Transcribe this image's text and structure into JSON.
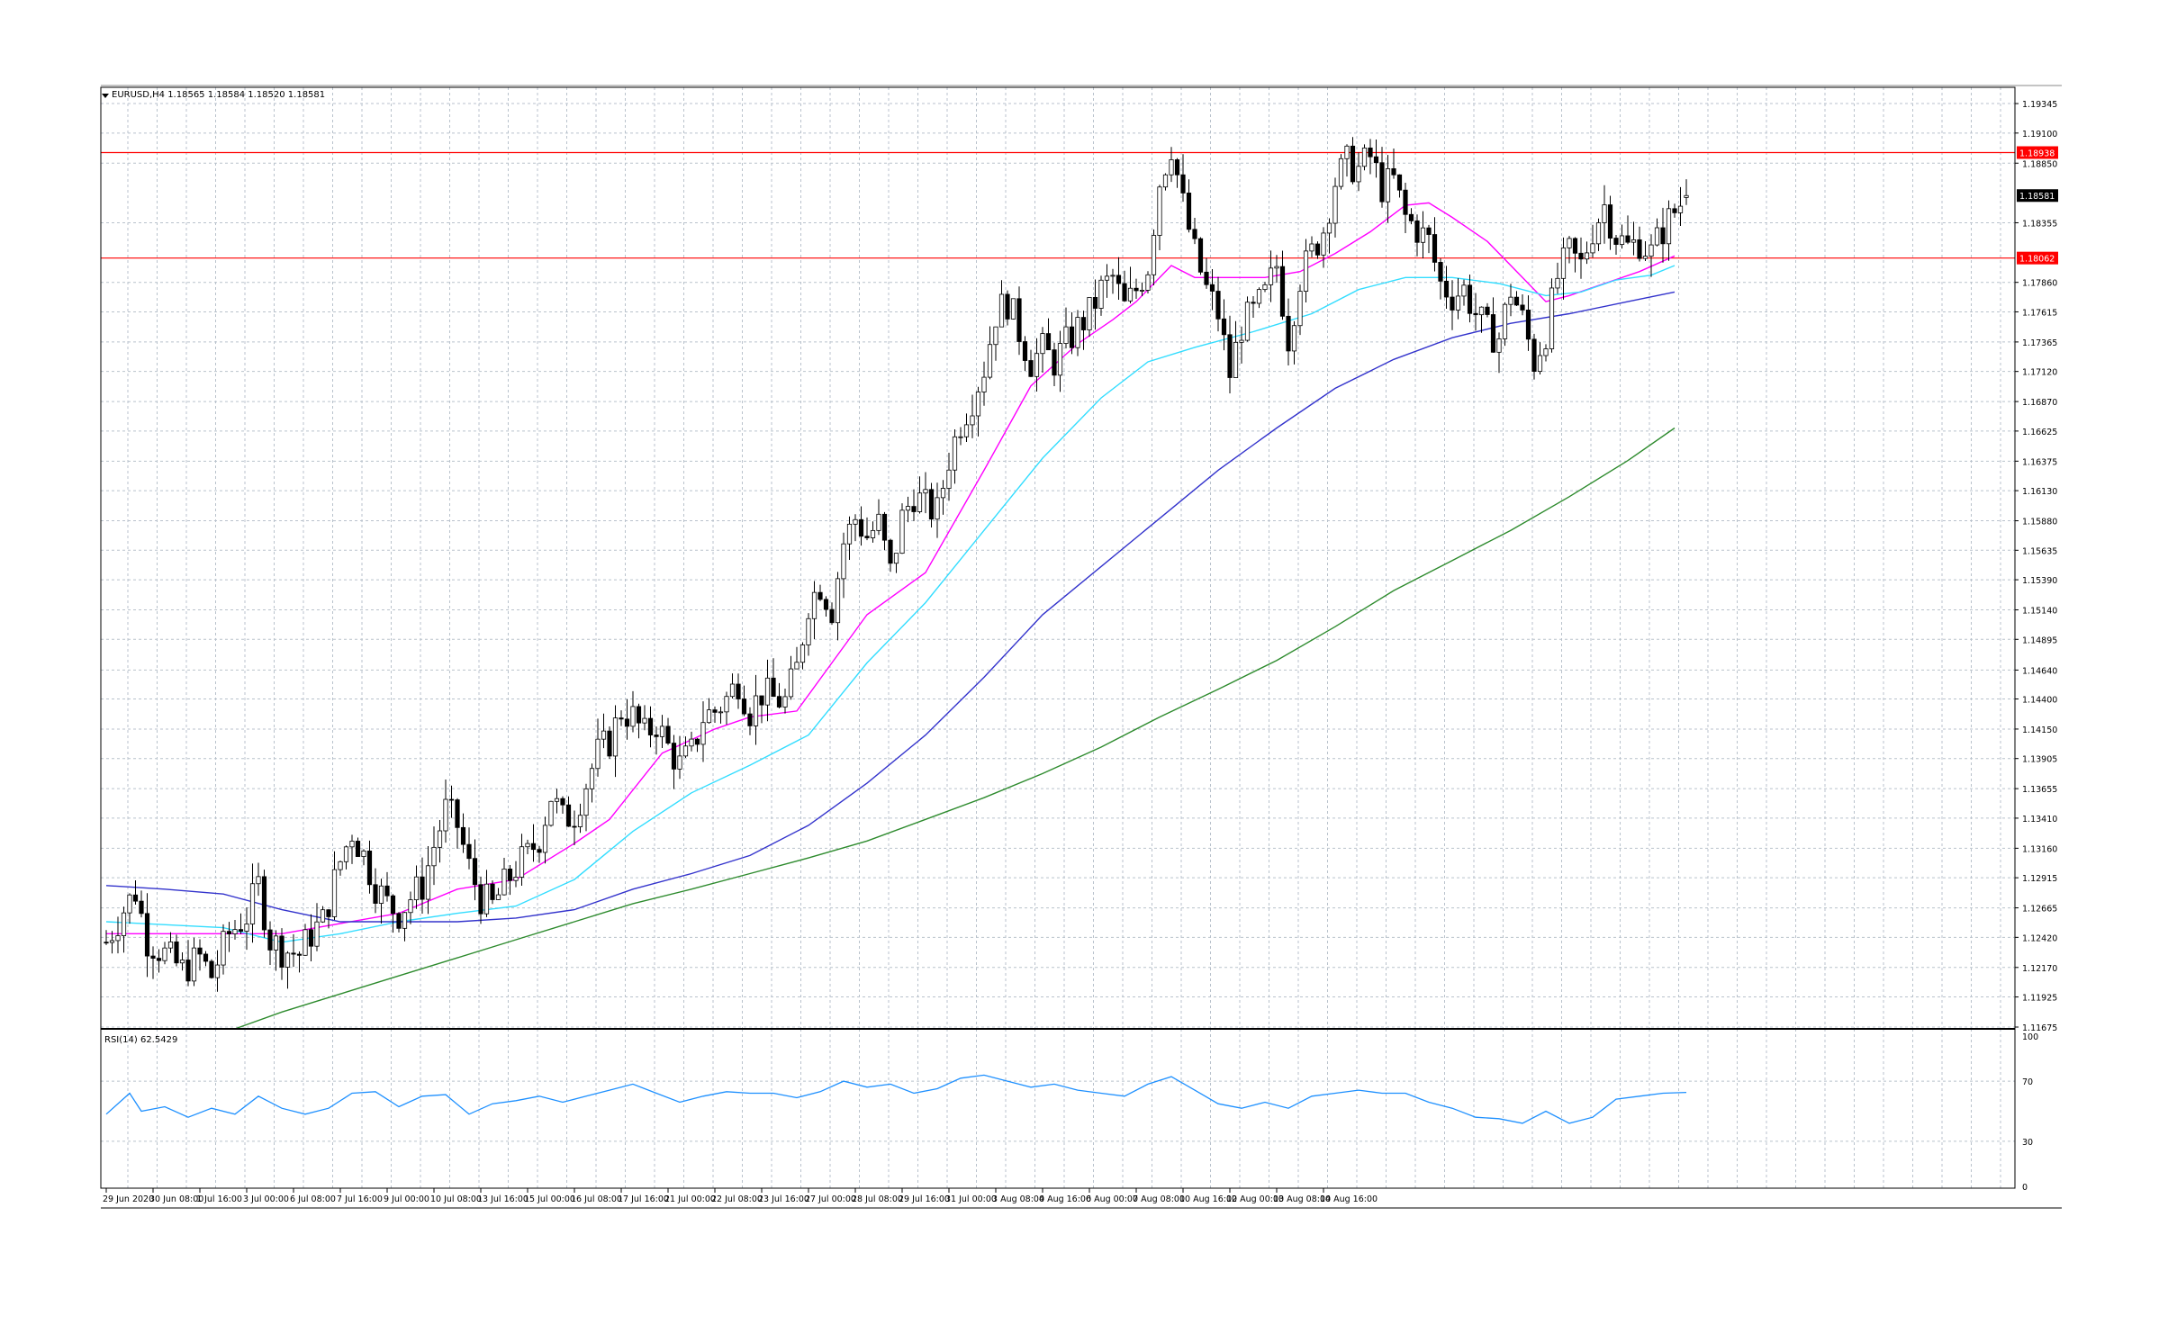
{
  "header": {
    "symbol_line": "EURUSD,H4  1.18565 1.18584 1.18520 1.18581"
  },
  "rsi_header": "RSI(14) 62.5429",
  "colors": {
    "grid": "#b9c2cc",
    "frame": "#000000",
    "hline": "#ff0000",
    "ma_fast": "#ff00ff",
    "ma_mid": "#33ddff",
    "ma_slow": "#3333cc",
    "ma_long": "#2e8b2e",
    "rsi_line": "#1e90ff"
  },
  "chart_data": {
    "type": "candlestick",
    "symbol": "EURUSD",
    "timeframe": "H4",
    "ohlc_last": {
      "open": 1.18565,
      "high": 1.18584,
      "low": 1.1852,
      "close": 1.18581
    },
    "price_axis_ticks": [
      "1.19345",
      "1.19100",
      "1.18850",
      "1.18355",
      "1.17860",
      "1.17615",
      "1.17365",
      "1.17120",
      "1.16870",
      "1.16625",
      "1.16375",
      "1.16130",
      "1.15880",
      "1.15635",
      "1.15390",
      "1.15140",
      "1.14895",
      "1.14640",
      "1.14400",
      "1.14150",
      "1.13905",
      "1.13655",
      "1.13410",
      "1.13160",
      "1.12915",
      "1.12665",
      "1.12420",
      "1.12170",
      "1.11925",
      "1.11675"
    ],
    "ylim": [
      1.1166,
      1.1948
    ],
    "horizontal_levels": [
      {
        "price": 1.18938,
        "label": "1.18938"
      },
      {
        "price": 1.18062,
        "label": "1.18062"
      }
    ],
    "current_price_label": "1.18581",
    "current_price": 1.18581,
    "time_axis_labels": [
      "29 Jun 2020",
      "30 Jun 08:00",
      "1 Jul 16:00",
      "3 Jul 00:00",
      "6 Jul 08:00",
      "7 Jul 16:00",
      "9 Jul 00:00",
      "10 Jul 08:00",
      "13 Jul 16:00",
      "15 Jul 00:00",
      "16 Jul 08:00",
      "17 Jul 16:00",
      "21 Jul 00:00",
      "22 Jul 08:00",
      "23 Jul 16:00",
      "27 Jul 00:00",
      "28 Jul 08:00",
      "29 Jul 16:00",
      "31 Jul 00:00",
      "3 Aug 08:00",
      "4 Aug 16:00",
      "6 Aug 00:00",
      "7 Aug 08:00",
      "10 Aug 16:00",
      "12 Aug 00:00",
      "13 Aug 08:00",
      "14 Aug 16:00"
    ],
    "bars_per_label": 8,
    "close_path": [
      [
        0,
        1.1238
      ],
      [
        3,
        1.1265
      ],
      [
        5,
        1.128
      ],
      [
        7,
        1.124
      ],
      [
        10,
        1.1228
      ],
      [
        13,
        1.1215
      ],
      [
        16,
        1.1225
      ],
      [
        18,
        1.121
      ],
      [
        21,
        1.1245
      ],
      [
        24,
        1.126
      ],
      [
        26,
        1.1285
      ],
      [
        28,
        1.124
      ],
      [
        30,
        1.1232
      ],
      [
        33,
        1.1228
      ],
      [
        35,
        1.1245
      ],
      [
        37,
        1.1255
      ],
      [
        40,
        1.1305
      ],
      [
        42,
        1.133
      ],
      [
        44,
        1.131
      ],
      [
        46,
        1.1285
      ],
      [
        48,
        1.127
      ],
      [
        50,
        1.1262
      ],
      [
        52,
        1.1275
      ],
      [
        54,
        1.1285
      ],
      [
        56,
        1.1318
      ],
      [
        58,
        1.1348
      ],
      [
        60,
        1.1335
      ],
      [
        62,
        1.13
      ],
      [
        64,
        1.1275
      ],
      [
        66,
        1.1268
      ],
      [
        68,
        1.1285
      ],
      [
        70,
        1.13
      ],
      [
        72,
        1.131
      ],
      [
        74,
        1.1325
      ],
      [
        76,
        1.136
      ],
      [
        78,
        1.134
      ],
      [
        80,
        1.1345
      ],
      [
        82,
        1.137
      ],
      [
        84,
        1.1395
      ],
      [
        86,
        1.1405
      ],
      [
        88,
        1.143
      ],
      [
        90,
        1.1425
      ],
      [
        92,
        1.141
      ],
      [
        94,
        1.142
      ],
      [
        96,
        1.14
      ],
      [
        98,
        1.1385
      ],
      [
        100,
        1.1395
      ],
      [
        102,
        1.1425
      ],
      [
        104,
        1.143
      ],
      [
        106,
        1.144
      ],
      [
        108,
        1.1455
      ],
      [
        110,
        1.143
      ],
      [
        112,
        1.1445
      ],
      [
        114,
        1.144
      ],
      [
        116,
        1.1438
      ],
      [
        118,
        1.1465
      ],
      [
        120,
        1.152
      ],
      [
        122,
        1.1535
      ],
      [
        124,
        1.1515
      ],
      [
        126,
        1.157
      ],
      [
        128,
        1.159
      ],
      [
        130,
        1.1575
      ],
      [
        132,
        1.1585
      ],
      [
        134,
        1.1545
      ],
      [
        136,
        1.159
      ],
      [
        138,
        1.161
      ],
      [
        140,
        1.16
      ],
      [
        142,
        1.1595
      ],
      [
        144,
        1.164
      ],
      [
        146,
        1.167
      ],
      [
        148,
        1.169
      ],
      [
        150,
        1.1715
      ],
      [
        152,
        1.176
      ],
      [
        154,
        1.177
      ],
      [
        156,
        1.1745
      ],
      [
        158,
        1.172
      ],
      [
        160,
        1.173
      ],
      [
        162,
        1.172
      ],
      [
        164,
        1.1735
      ],
      [
        166,
        1.1748
      ],
      [
        168,
        1.176
      ],
      [
        170,
        1.178
      ],
      [
        172,
        1.179
      ],
      [
        174,
        1.1765
      ],
      [
        176,
        1.178
      ],
      [
        178,
        1.18
      ],
      [
        180,
        1.187
      ],
      [
        182,
        1.19
      ],
      [
        184,
        1.185
      ],
      [
        186,
        1.181
      ],
      [
        188,
        1.178
      ],
      [
        190,
        1.176
      ],
      [
        192,
        1.171
      ],
      [
        194,
        1.175
      ],
      [
        196,
        1.176
      ],
      [
        198,
        1.1775
      ],
      [
        200,
        1.18
      ],
      [
        202,
        1.174
      ],
      [
        204,
        1.179
      ],
      [
        206,
        1.181
      ],
      [
        208,
        1.183
      ],
      [
        210,
        1.187
      ],
      [
        212,
        1.1885
      ],
      [
        214,
        1.188
      ],
      [
        216,
        1.189
      ],
      [
        218,
        1.1865
      ],
      [
        220,
        1.187
      ],
      [
        222,
        1.184
      ],
      [
        224,
        1.183
      ],
      [
        226,
        1.182
      ],
      [
        228,
        1.1785
      ],
      [
        230,
        1.1775
      ],
      [
        232,
        1.178
      ],
      [
        234,
        1.176
      ],
      [
        236,
        1.1745
      ],
      [
        238,
        1.174
      ],
      [
        240,
        1.178
      ],
      [
        242,
        1.1755
      ],
      [
        244,
        1.172
      ],
      [
        246,
        1.1745
      ],
      [
        248,
        1.179
      ],
      [
        250,
        1.181
      ],
      [
        252,
        1.18
      ],
      [
        254,
        1.183
      ],
      [
        256,
        1.185
      ],
      [
        258,
        1.1825
      ],
      [
        260,
        1.1815
      ],
      [
        262,
        1.182
      ],
      [
        264,
        1.181
      ],
      [
        266,
        1.183
      ],
      [
        268,
        1.1845
      ],
      [
        270,
        1.1858
      ]
    ],
    "moving_averages": [
      {
        "color_key": "ma_fast",
        "values": [
          [
            0,
            1.1245
          ],
          [
            20,
            1.1245
          ],
          [
            30,
            1.1245
          ],
          [
            50,
            1.1262
          ],
          [
            60,
            1.1282
          ],
          [
            70,
            1.129
          ],
          [
            80,
            1.132
          ],
          [
            86,
            1.134
          ],
          [
            95,
            1.1395
          ],
          [
            104,
            1.1415
          ],
          [
            110,
            1.1425
          ],
          [
            118,
            1.143
          ],
          [
            124,
            1.147
          ],
          [
            130,
            1.151
          ],
          [
            140,
            1.1545
          ],
          [
            150,
            1.163
          ],
          [
            158,
            1.17
          ],
          [
            166,
            1.1735
          ],
          [
            172,
            1.1755
          ],
          [
            176,
            1.177
          ],
          [
            182,
            1.18
          ],
          [
            186,
            1.179
          ],
          [
            192,
            1.179
          ],
          [
            198,
            1.179
          ],
          [
            204,
            1.1795
          ],
          [
            210,
            1.181
          ],
          [
            216,
            1.1828
          ],
          [
            222,
            1.185
          ],
          [
            226,
            1.1852
          ],
          [
            230,
            1.184
          ],
          [
            236,
            1.182
          ],
          [
            242,
            1.179
          ],
          [
            246,
            1.177
          ],
          [
            250,
            1.1775
          ],
          [
            256,
            1.1785
          ],
          [
            262,
            1.1795
          ],
          [
            268,
            1.1808
          ]
        ]
      },
      {
        "color_key": "ma_mid",
        "values": [
          [
            0,
            1.1255
          ],
          [
            20,
            1.125
          ],
          [
            30,
            1.1238
          ],
          [
            40,
            1.1245
          ],
          [
            50,
            1.1255
          ],
          [
            60,
            1.1262
          ],
          [
            70,
            1.1268
          ],
          [
            80,
            1.129
          ],
          [
            90,
            1.133
          ],
          [
            100,
            1.1362
          ],
          [
            110,
            1.1385
          ],
          [
            120,
            1.141
          ],
          [
            130,
            1.147
          ],
          [
            140,
            1.152
          ],
          [
            150,
            1.158
          ],
          [
            160,
            1.164
          ],
          [
            170,
            1.169
          ],
          [
            178,
            1.172
          ],
          [
            186,
            1.1732
          ],
          [
            196,
            1.1745
          ],
          [
            206,
            1.176
          ],
          [
            214,
            1.178
          ],
          [
            222,
            1.179
          ],
          [
            230,
            1.179
          ],
          [
            238,
            1.1785
          ],
          [
            246,
            1.1775
          ],
          [
            252,
            1.1778
          ],
          [
            258,
            1.1788
          ],
          [
            264,
            1.1792
          ],
          [
            268,
            1.18
          ]
        ]
      },
      {
        "color_key": "ma_slow",
        "values": [
          [
            0,
            1.1285
          ],
          [
            10,
            1.1282
          ],
          [
            20,
            1.1278
          ],
          [
            30,
            1.1265
          ],
          [
            40,
            1.1255
          ],
          [
            50,
            1.1255
          ],
          [
            60,
            1.1255
          ],
          [
            70,
            1.1258
          ],
          [
            80,
            1.1265
          ],
          [
            90,
            1.1282
          ],
          [
            100,
            1.1295
          ],
          [
            110,
            1.131
          ],
          [
            120,
            1.1335
          ],
          [
            130,
            1.137
          ],
          [
            140,
            1.141
          ],
          [
            150,
            1.1458
          ],
          [
            160,
            1.151
          ],
          [
            170,
            1.155
          ],
          [
            180,
            1.159
          ],
          [
            190,
            1.163
          ],
          [
            200,
            1.1665
          ],
          [
            210,
            1.1698
          ],
          [
            220,
            1.1722
          ],
          [
            230,
            1.174
          ],
          [
            240,
            1.1752
          ],
          [
            250,
            1.176
          ],
          [
            260,
            1.177
          ],
          [
            268,
            1.1778
          ]
        ]
      },
      {
        "color_key": "ma_long",
        "values": [
          [
            22,
            1.1166
          ],
          [
            30,
            1.118
          ],
          [
            40,
            1.1195
          ],
          [
            50,
            1.121
          ],
          [
            60,
            1.1225
          ],
          [
            70,
            1.124
          ],
          [
            80,
            1.1255
          ],
          [
            90,
            1.127
          ],
          [
            100,
            1.1282
          ],
          [
            110,
            1.1295
          ],
          [
            120,
            1.1308
          ],
          [
            130,
            1.1322
          ],
          [
            140,
            1.134
          ],
          [
            150,
            1.1358
          ],
          [
            160,
            1.1378
          ],
          [
            170,
            1.14
          ],
          [
            180,
            1.1425
          ],
          [
            190,
            1.1448
          ],
          [
            200,
            1.1472
          ],
          [
            210,
            1.15
          ],
          [
            220,
            1.153
          ],
          [
            230,
            1.1555
          ],
          [
            240,
            1.158
          ],
          [
            250,
            1.1608
          ],
          [
            260,
            1.1638
          ],
          [
            268,
            1.1665
          ]
        ]
      }
    ],
    "rsi": {
      "name": "RSI(14)",
      "current": 62.5429,
      "ylim": [
        0,
        100
      ],
      "ticks": [
        "100",
        "70",
        "30",
        "0"
      ],
      "levels": [
        30,
        70
      ],
      "values": [
        [
          0,
          48
        ],
        [
          4,
          62
        ],
        [
          6,
          50
        ],
        [
          10,
          53
        ],
        [
          14,
          46
        ],
        [
          18,
          52
        ],
        [
          22,
          48
        ],
        [
          26,
          60
        ],
        [
          30,
          52
        ],
        [
          34,
          48
        ],
        [
          38,
          52
        ],
        [
          42,
          62
        ],
        [
          46,
          63
        ],
        [
          50,
          53
        ],
        [
          54,
          60
        ],
        [
          58,
          61
        ],
        [
          62,
          48
        ],
        [
          66,
          55
        ],
        [
          70,
          57
        ],
        [
          74,
          60
        ],
        [
          78,
          56
        ],
        [
          82,
          60
        ],
        [
          86,
          64
        ],
        [
          90,
          68
        ],
        [
          94,
          62
        ],
        [
          98,
          56
        ],
        [
          102,
          60
        ],
        [
          106,
          63
        ],
        [
          110,
          62
        ],
        [
          114,
          62
        ],
        [
          118,
          59
        ],
        [
          122,
          63
        ],
        [
          126,
          70
        ],
        [
          130,
          66
        ],
        [
          134,
          68
        ],
        [
          138,
          62
        ],
        [
          142,
          65
        ],
        [
          146,
          72
        ],
        [
          150,
          74
        ],
        [
          154,
          70
        ],
        [
          158,
          66
        ],
        [
          162,
          68
        ],
        [
          166,
          64
        ],
        [
          170,
          62
        ],
        [
          174,
          60
        ],
        [
          178,
          68
        ],
        [
          182,
          73
        ],
        [
          186,
          64
        ],
        [
          190,
          55
        ],
        [
          194,
          52
        ],
        [
          198,
          56
        ],
        [
          202,
          52
        ],
        [
          206,
          60
        ],
        [
          210,
          62
        ],
        [
          214,
          64
        ],
        [
          218,
          62
        ],
        [
          222,
          62
        ],
        [
          226,
          56
        ],
        [
          230,
          52
        ],
        [
          234,
          46
        ],
        [
          238,
          45
        ],
        [
          242,
          42
        ],
        [
          246,
          50
        ],
        [
          250,
          42
        ],
        [
          254,
          46
        ],
        [
          258,
          58
        ],
        [
          262,
          60
        ],
        [
          266,
          62
        ],
        [
          270,
          62.5
        ]
      ]
    }
  }
}
